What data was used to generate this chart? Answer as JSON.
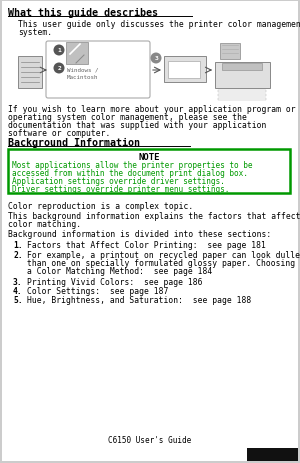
{
  "background_color": "#ffffff",
  "page_bg": "#ffffff",
  "outer_bg": "#cccccc",
  "title1": "What this guide describes",
  "body1_line1": "This user guide only discusses the printer color management",
  "body1_line2": "system.",
  "body2_line1": "If you wish to learn more about your application program or",
  "body2_line2": "operating system color management, please see the",
  "body2_line3": "documentation that was supplied with your application",
  "body2_line4": "software or computer.",
  "title2": "Background Information",
  "note_title": "NOTE",
  "note_line1": "Most applications allow the printer properties to be",
  "note_line2": "accessed from within the document print dialog box.",
  "note_line3": "Application settings override driver settings.",
  "note_line4": "Driver settings override printer menu settings.",
  "note_border_color": "#009900",
  "note_text_color": "#009900",
  "note_bg": "#ffffff",
  "body3": "Color reproduction is a complex topic.",
  "body4_line1": "This background information explains the factors that affect",
  "body4_line2": "color matching.",
  "body5": "Background information is divided into these sections:",
  "item1": "Factors that Affect Color Printing:  see page 181",
  "item2_line1": "For example, a printout on recycled paper can look duller",
  "item2_line2": "than one on specially formulated glossy paper. Choosing",
  "item2_line3": "a Color Matching Method:  see page 184",
  "item3": "Printing Vivid Colors:  see page 186",
  "item4": "Color Settings:  see page 187",
  "item5": "Hue, Brightness, and Saturation:  see page 188",
  "footer": "C6150 User's Guide",
  "text_color": "#000000",
  "heading_color": "#000000",
  "gray_icon": "#c0c0c0",
  "dark_gray": "#888888",
  "arrow_color": "#555555"
}
